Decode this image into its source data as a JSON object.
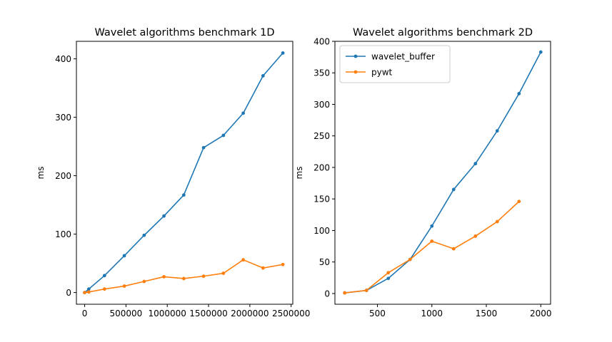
{
  "chart_data": [
    {
      "type": "line",
      "title": "Wavelet algorithms benchmark 1D",
      "xlabel": "",
      "ylabel": "ms",
      "xlim": [
        -100000,
        2520000
      ],
      "ylim": [
        -20,
        430
      ],
      "xticks": [
        0,
        500000,
        1000000,
        1500000,
        2000000,
        2500000
      ],
      "xtick_labels": [
        "0",
        "500000",
        "1000000",
        "1500000",
        "2000000",
        "2500000"
      ],
      "yticks": [
        0,
        100,
        200,
        300,
        400
      ],
      "ytick_labels": [
        "0",
        "100",
        "200",
        "300",
        "400"
      ],
      "legend": false,
      "grid": false,
      "series": [
        {
          "color": "#1f77b4",
          "x": [
            0,
            50000,
            240000,
            480000,
            720000,
            960000,
            1200000,
            1440000,
            1680000,
            1920000,
            2160000,
            2400000
          ],
          "y": [
            0,
            6,
            29,
            63,
            98,
            131,
            167,
            248,
            269,
            307,
            371,
            410
          ]
        },
        {
          "color": "#ff7f0e",
          "x": [
            0,
            50000,
            240000,
            480000,
            720000,
            960000,
            1200000,
            1440000,
            1680000,
            1920000,
            2160000,
            2400000
          ],
          "y": [
            0,
            1,
            6,
            11,
            19,
            27,
            24,
            28,
            33,
            56,
            42,
            48
          ]
        }
      ]
    },
    {
      "type": "line",
      "title": "Wavelet algorithms benchmark 2D",
      "xlabel": "",
      "ylabel": "ms",
      "xlim": [
        110,
        2090
      ],
      "ylim": [
        -17,
        400
      ],
      "xticks": [
        500,
        1000,
        1500,
        2000
      ],
      "xtick_labels": [
        "500",
        "1000",
        "1500",
        "2000"
      ],
      "yticks": [
        0,
        50,
        100,
        150,
        200,
        250,
        300,
        350,
        400
      ],
      "ytick_labels": [
        "0",
        "50",
        "100",
        "150",
        "200",
        "250",
        "300",
        "350",
        "400"
      ],
      "legend": true,
      "legend_position": "upper-left",
      "grid": false,
      "series": [
        {
          "name": "wavelet_buffer",
          "color": "#1f77b4",
          "x": [
            200,
            400,
            600,
            800,
            1000,
            1200,
            1400,
            1600,
            1800,
            2000
          ],
          "y": [
            1,
            5,
            24,
            54,
            107,
            165,
            206,
            258,
            317,
            383
          ]
        },
        {
          "name": "pywt",
          "color": "#ff7f0e",
          "x": [
            200,
            400,
            600,
            800,
            1000,
            1200,
            1400,
            1600,
            1800
          ],
          "y": [
            1,
            5,
            33,
            54,
            83,
            71,
            91,
            114,
            146
          ]
        }
      ]
    }
  ]
}
